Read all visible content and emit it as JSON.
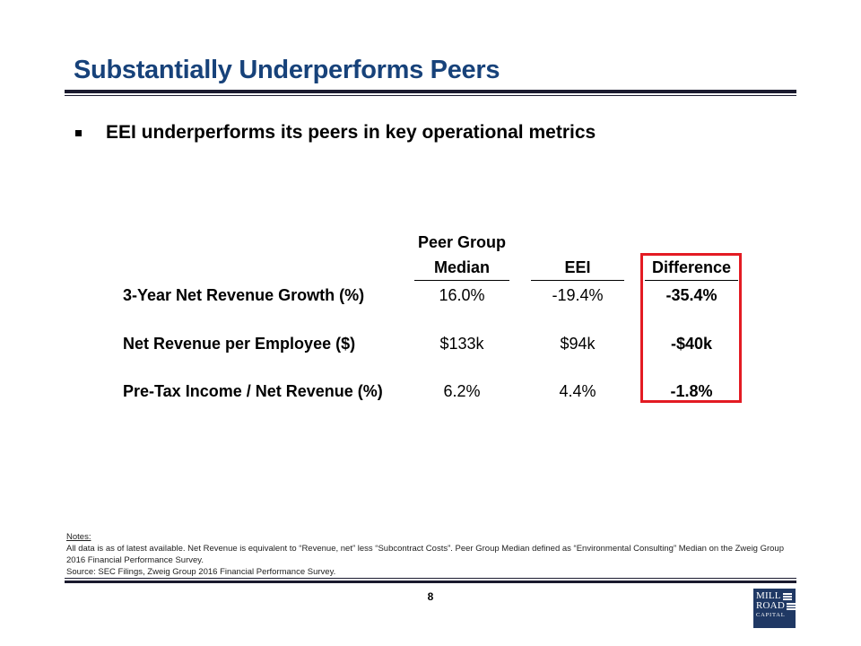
{
  "title": "Substantially Underperforms Peers",
  "bullet": "EEI underperforms its peers in key operational metrics",
  "table": {
    "headers": {
      "peer_line1": "Peer Group",
      "peer_line2": "Median",
      "eei": "EEI",
      "difference": "Difference"
    },
    "rows": [
      {
        "label": "3-Year Net Revenue Growth (%)",
        "peer": "16.0%",
        "eei": "-19.4%",
        "diff": "-35.4%"
      },
      {
        "label": "Net Revenue per Employee ($)",
        "peer": "$133k",
        "eei": "$94k",
        "diff": "-$40k"
      },
      {
        "label": "Pre-Tax Income / Net Revenue (%)",
        "peer": "6.2%",
        "eei": "4.4%",
        "diff": "-1.8%"
      }
    ]
  },
  "notes": {
    "heading": "Notes:",
    "line1": "All data is as of latest available. Net Revenue is equivalent to “Revenue, net” less “Subcontract Costs”. Peer Group Median defined as “Environmental Consulting” Median on the Zweig Group 2016 Financial Performance Survey.",
    "source": "Source: SEC Filings, Zweig Group 2016 Financial Performance Survey."
  },
  "page_number": "8",
  "logo": {
    "line1": "MILL",
    "line2": "ROAD",
    "line3": "CAPITAL"
  },
  "colors": {
    "title": "#17427a",
    "highlight": "#e31b23",
    "logo_bg": "#1f3864"
  }
}
